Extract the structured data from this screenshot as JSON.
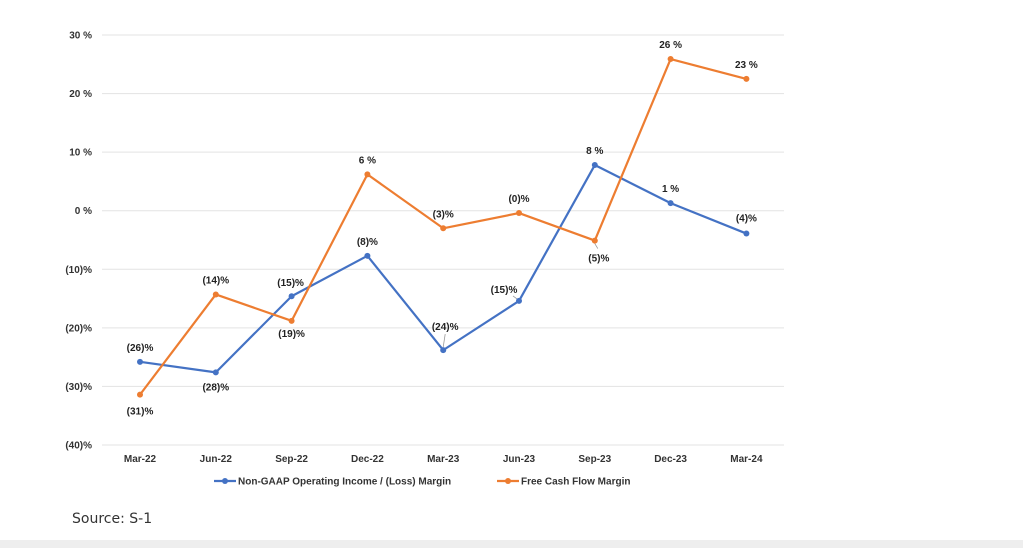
{
  "chart_data": {
    "type": "line",
    "categories": [
      "Mar-22",
      "Jun-22",
      "Sep-22",
      "Dec-22",
      "Mar-23",
      "Jun-23",
      "Sep-23",
      "Dec-23",
      "Mar-24"
    ],
    "ylim": [
      -40,
      30
    ],
    "yticks": [
      30,
      20,
      10,
      0,
      -10,
      -20,
      -30,
      -40
    ],
    "ytick_labels": [
      "30 %",
      "20 %",
      "10 %",
      "0 %",
      "(10)%",
      "(20)%",
      "(30)%",
      "(40)%"
    ],
    "grid": true,
    "legend_position": "bottom",
    "series": [
      {
        "name": "Non-GAAP Operating Income / (Loss) Margin",
        "color": "#4472C4",
        "values": [
          -25.8,
          -27.6,
          -14.6,
          -7.7,
          -23.8,
          -15.4,
          7.8,
          1.3,
          -3.9
        ],
        "labels": [
          "(26)%",
          "(28)%",
          "(15)%",
          "(8)%",
          "(24)%",
          "(15)%",
          "8 %",
          "1 %",
          "(4)%"
        ]
      },
      {
        "name": "Free Cash Flow Margin",
        "color": "#ED7D31",
        "values": [
          -31.4,
          -14.3,
          -18.8,
          6.2,
          -3.0,
          -0.4,
          -5.1,
          25.9,
          22.5
        ],
        "labels": [
          "(31)%",
          "(14)%",
          "(19)%",
          "6 %",
          "(3)%",
          "(0)%",
          "(5)%",
          "26 %",
          "23 %"
        ]
      }
    ]
  },
  "source_note": "Source: S-1"
}
